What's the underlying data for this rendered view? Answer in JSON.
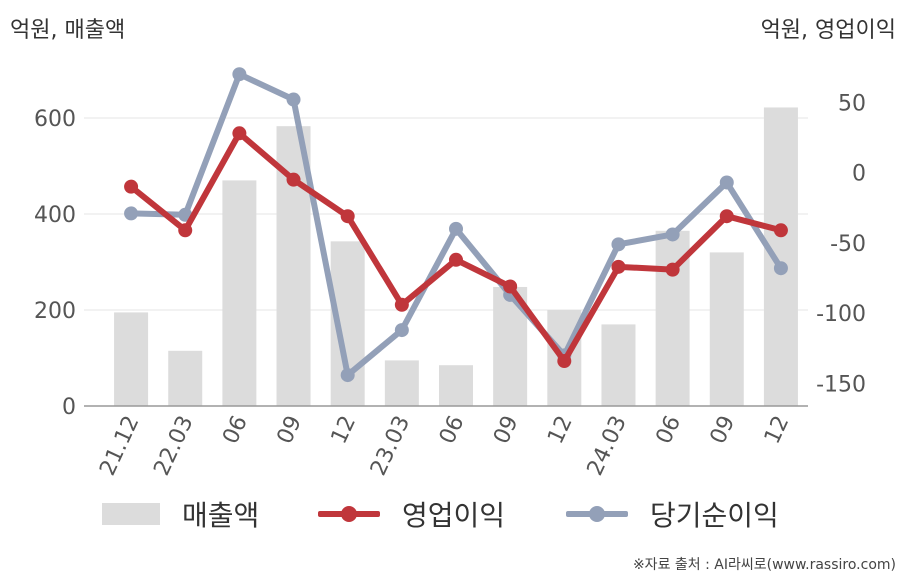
{
  "units": {
    "left": "억원, 매출액",
    "right": "억원, 영업이익"
  },
  "source": "※자료 출처 : AI라씨로(www.rassiro.com)",
  "colors": {
    "bar": "#dcdcdc",
    "operating": "#c0363b",
    "net": "#93a0b8",
    "grid": "#e6e6e6",
    "axis": "#999999",
    "tick": "#555555"
  },
  "chart_data": {
    "type": "bar",
    "categories": [
      "21.12",
      "22.03",
      "06",
      "09",
      "12",
      "23.03",
      "06",
      "09",
      "12",
      "24.03",
      "06",
      "09",
      "12"
    ],
    "y_left": {
      "ticks": [
        0,
        200,
        400,
        600
      ],
      "range": [
        0,
        700
      ]
    },
    "y_right": {
      "ticks": [
        -150,
        -100,
        -50,
        0,
        50
      ],
      "range": [
        -166,
        73
      ]
    },
    "grid": true,
    "legend_position": "bottom",
    "series": [
      {
        "name": "매출액",
        "type": "bar",
        "axis": "left",
        "values": [
          195,
          115,
          470,
          583,
          343,
          95,
          85,
          248,
          200,
          170,
          365,
          320,
          622
        ]
      },
      {
        "name": "영업이익",
        "type": "line",
        "axis": "right",
        "values": [
          -10,
          -41,
          28,
          -5,
          -31,
          -94,
          -62,
          -81,
          -134,
          -67,
          -69,
          -31,
          -41
        ]
      },
      {
        "name": "당기순이익",
        "type": "line",
        "axis": "right",
        "values": [
          -29,
          -30,
          70,
          52,
          -144,
          -112,
          -40,
          -87,
          -130,
          -51,
          -44,
          -7,
          -68
        ]
      }
    ]
  }
}
